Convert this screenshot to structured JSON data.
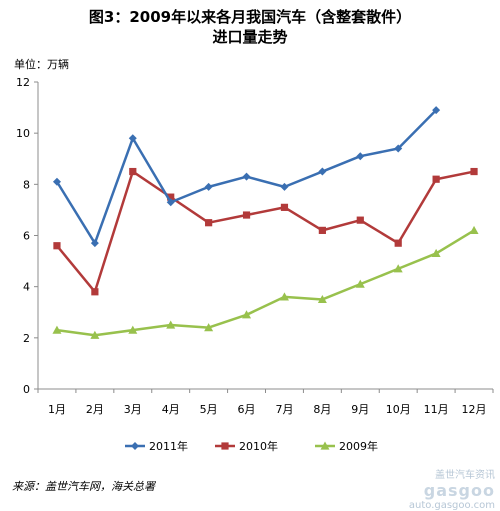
{
  "title_line1": "图3：2009年以来各月我国汽车（含整套散件）",
  "title_line2": "进口量走势",
  "unit_label": "单位：万辆",
  "source_label": "来源：盖世汽车网，海关总署",
  "watermark": {
    "cn": "盖世汽车资讯",
    "logo": "gasgoo",
    "url": "auto.gasgoo.com"
  },
  "colors": {
    "2011": "#3a6fb2",
    "2010": "#b23a3a",
    "2009": "#98c14d",
    "axis": "#8c8c8c"
  },
  "chart_data": {
    "type": "line",
    "categories": [
      "1月",
      "2月",
      "3月",
      "4月",
      "5月",
      "6月",
      "7月",
      "8月",
      "9月",
      "10月",
      "11月",
      "12月"
    ],
    "ylim": [
      0,
      12
    ],
    "yticks": [
      0,
      2,
      4,
      6,
      8,
      10,
      12
    ],
    "grid": false,
    "legend_position": "bottom",
    "series": [
      {
        "name": "2011年",
        "marker": "diamond",
        "values": [
          8.1,
          5.7,
          9.8,
          7.3,
          7.9,
          8.3,
          7.9,
          8.5,
          9.1,
          9.4,
          10.9,
          null
        ]
      },
      {
        "name": "2010年",
        "marker": "square",
        "values": [
          5.6,
          3.8,
          8.5,
          7.5,
          6.5,
          6.8,
          7.1,
          6.2,
          6.6,
          5.7,
          8.2,
          8.5
        ]
      },
      {
        "name": "2009年",
        "marker": "triangle",
        "values": [
          2.3,
          2.1,
          2.3,
          2.5,
          2.4,
          2.9,
          3.6,
          3.5,
          4.1,
          4.7,
          5.3,
          6.2
        ]
      }
    ]
  }
}
